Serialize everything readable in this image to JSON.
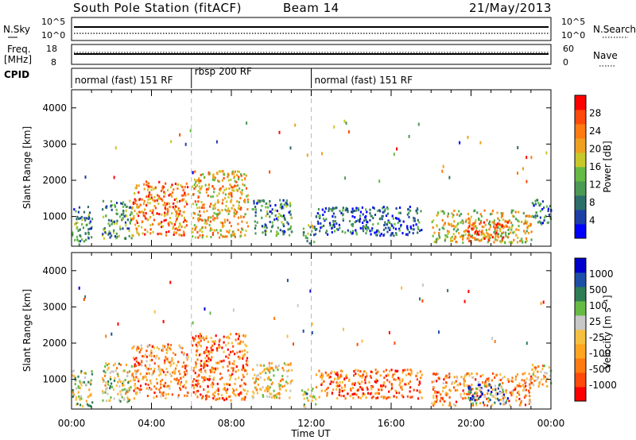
{
  "header": {
    "station": "South Pole Station (fitACF)",
    "beam": "Beam 14",
    "date": "21/May/2013"
  },
  "top_panels": {
    "nsky_label": "N.Sky",
    "nsearch_label": "N.Search",
    "freq_label": "Freq.",
    "freq_unit": "[MHz]",
    "nave_label": "Nave",
    "cpid_label": "CPID",
    "left_ticks_upper": [
      "10^5",
      "10^0"
    ],
    "right_ticks_upper": [
      "10^5",
      "10^0"
    ],
    "left_ticks_freq": [
      "18",
      "8"
    ],
    "right_ticks_nave": [
      "60",
      "0"
    ],
    "cpid_segments": [
      {
        "label": "normal (fast) 151 RF",
        "start_hour": 0,
        "end_hour": 6
      },
      {
        "label": "rbsp 200 RF",
        "start_hour": 6,
        "end_hour": 12
      },
      {
        "label": "normal (fast) 151 RF",
        "start_hour": 12,
        "end_hour": 24
      }
    ]
  },
  "chart_data": [
    {
      "type": "heatmap",
      "panel": "power",
      "ylabel": "Slant Range [km]",
      "xlabel": "Time UT",
      "xlim_hours": [
        0,
        24
      ],
      "ylim": [
        180,
        4500
      ],
      "x_tick_labels": [
        "00:00",
        "04:00",
        "08:00",
        "12:00",
        "16:00",
        "20:00",
        "00:00"
      ],
      "y_ticks": [
        1000,
        2000,
        3000,
        4000
      ],
      "colorbar": {
        "label": "Power [dB]",
        "ticks": [
          "4",
          "8",
          "12",
          "16",
          "20",
          "24",
          "28"
        ],
        "range": [
          0,
          30
        ],
        "colors": [
          "#0000ff",
          "#1e3fa8",
          "#2c6e6a",
          "#4a9a55",
          "#66bb44",
          "#c9c82a",
          "#f0a020",
          "#ff7a10",
          "#ff4a0a",
          "#ff0000"
        ]
      },
      "scatter_regions": [
        {
          "start_hour": 0.0,
          "end_hour": 1.0,
          "range_low": 250,
          "range_high": 1300,
          "level": 0.3
        },
        {
          "start_hour": 1.5,
          "end_hour": 3.0,
          "range_low": 400,
          "range_high": 1500,
          "level": 0.35
        },
        {
          "start_hour": 3.0,
          "end_hour": 5.8,
          "range_low": 500,
          "range_high": 2000,
          "level": 0.75
        },
        {
          "start_hour": 6.0,
          "end_hour": 8.8,
          "range_low": 450,
          "range_high": 2300,
          "level": 0.65
        },
        {
          "start_hour": 9.0,
          "end_hour": 11.0,
          "range_low": 500,
          "range_high": 1500,
          "level": 0.3
        },
        {
          "start_hour": 11.5,
          "end_hour": 12.2,
          "range_low": 250,
          "range_high": 800,
          "level": 0.4
        },
        {
          "start_hour": 12.2,
          "end_hour": 17.5,
          "range_low": 500,
          "range_high": 1300,
          "level": 0.2
        },
        {
          "start_hour": 18.0,
          "end_hour": 23.0,
          "range_low": 300,
          "range_high": 1200,
          "level": 0.55
        },
        {
          "start_hour": 19.8,
          "end_hour": 21.8,
          "range_low": 350,
          "range_high": 900,
          "level": 0.85
        },
        {
          "start_hour": 23.0,
          "end_hour": 24.0,
          "range_low": 800,
          "range_high": 1500,
          "level": 0.3
        }
      ]
    },
    {
      "type": "heatmap",
      "panel": "velocity",
      "ylabel": "Slant Range [km]",
      "xlabel": "Time UT",
      "xlim_hours": [
        0,
        24
      ],
      "ylim": [
        180,
        4500
      ],
      "x_tick_labels": [
        "00:00",
        "04:00",
        "08:00",
        "12:00",
        "16:00",
        "20:00",
        "00:00"
      ],
      "y_ticks": [
        1000,
        2000,
        3000,
        4000
      ],
      "colorbar": {
        "label": "Velocity [m s⁻¹]",
        "ticks": [
          "1000",
          "500",
          "100",
          "25",
          "-25",
          "-100",
          "-500",
          "-1000"
        ],
        "range": [
          -1000,
          1000
        ],
        "colors": [
          "#ff0000",
          "#ff4a0a",
          "#ff7a10",
          "#ffa520",
          "#f5c040",
          "#c8c8c8",
          "#66bb44",
          "#2e7e55",
          "#1e4fa8",
          "#0000cc"
        ]
      },
      "scatter_regions": [
        {
          "start_hour": 0.0,
          "end_hour": 1.0,
          "range_low": 250,
          "range_high": 1300,
          "level": 0.55
        },
        {
          "start_hour": 1.5,
          "end_hour": 3.0,
          "range_low": 400,
          "range_high": 1500,
          "level": 0.5
        },
        {
          "start_hour": 3.0,
          "end_hour": 5.8,
          "range_low": 500,
          "range_high": 2000,
          "level": 0.3
        },
        {
          "start_hour": 6.0,
          "end_hour": 8.8,
          "range_low": 450,
          "range_high": 2300,
          "level": 0.25
        },
        {
          "start_hour": 9.0,
          "end_hour": 11.0,
          "range_low": 500,
          "range_high": 1500,
          "level": 0.45
        },
        {
          "start_hour": 11.5,
          "end_hour": 12.2,
          "range_low": 250,
          "range_high": 800,
          "level": 0.6
        },
        {
          "start_hour": 12.2,
          "end_hour": 17.5,
          "range_low": 500,
          "range_high": 1300,
          "level": 0.2
        },
        {
          "start_hour": 18.0,
          "end_hour": 23.0,
          "range_low": 300,
          "range_high": 1200,
          "level": 0.3
        },
        {
          "start_hour": 19.8,
          "end_hour": 21.8,
          "range_low": 350,
          "range_high": 900,
          "level": 0.75
        },
        {
          "start_hour": 23.0,
          "end_hour": 24.0,
          "range_low": 800,
          "range_high": 1500,
          "level": 0.4
        }
      ]
    }
  ]
}
